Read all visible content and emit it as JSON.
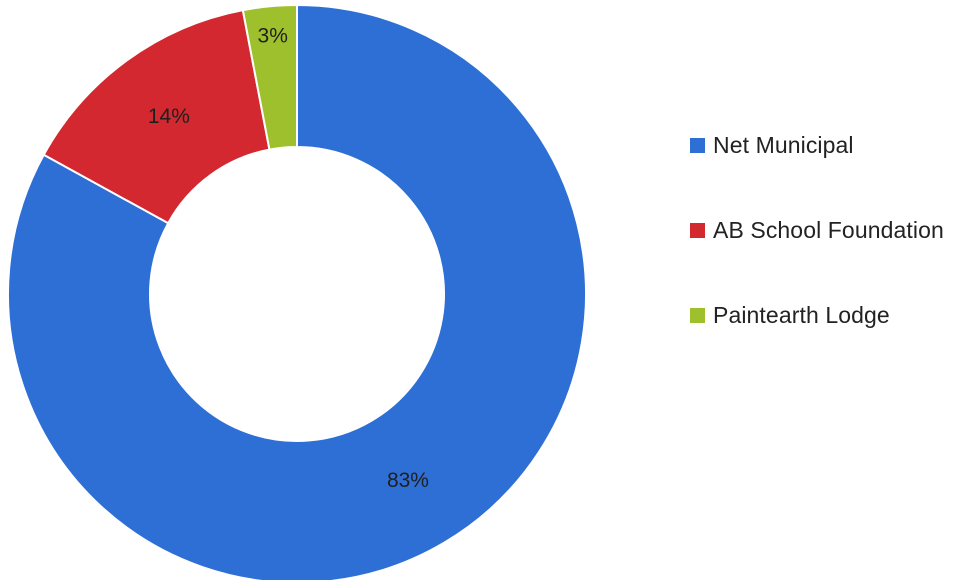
{
  "chart_data": {
    "type": "pie",
    "donut": true,
    "categories": [
      "Net Municipal",
      "AB School Foundation",
      "Paintearth Lodge"
    ],
    "values": [
      83,
      14,
      3
    ],
    "data_labels": [
      "83%",
      "14%",
      "3%"
    ],
    "colors": [
      "#2e6fd6",
      "#d3282f",
      "#9ec02c"
    ],
    "legend_placement": "right"
  }
}
